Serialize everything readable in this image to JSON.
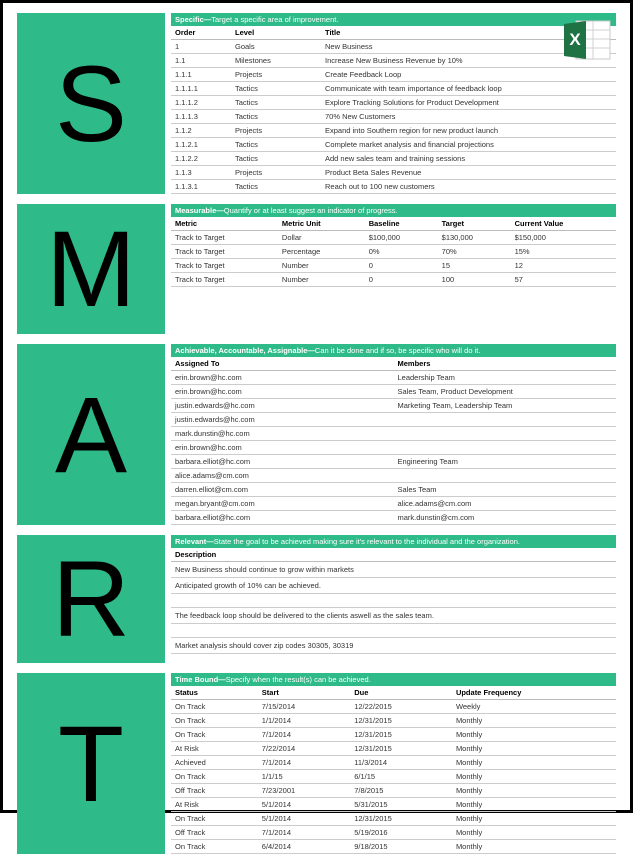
{
  "colors": {
    "accent": "#2fba8a",
    "border": "#000000",
    "rule": "#cccccc"
  },
  "excel_badge": {
    "name": "excel-icon"
  },
  "sections": {
    "s": {
      "letter": "S",
      "header_bold": "Specific—",
      "header_rest": "Target a specific area of improvement.",
      "cols": [
        "Order",
        "Level",
        "Title"
      ],
      "rows": [
        [
          "1",
          "Goals",
          "New Business"
        ],
        [
          "1.1",
          "Milestones",
          "Increase New Business Revenue by 10%"
        ],
        [
          "1.1.1",
          "Projects",
          "Create Feedback Loop"
        ],
        [
          "1.1.1.1",
          "Tactics",
          "Communicate with team importance of feedback loop"
        ],
        [
          "1.1.1.2",
          "Tactics",
          "Explore Tracking Solutions for Product Development"
        ],
        [
          "1.1.1.3",
          "Tactics",
          "70% New Customers"
        ],
        [
          "1.1.2",
          "Projects",
          "Expand into Southern region for new product launch"
        ],
        [
          "1.1.2.1",
          "Tactics",
          "Complete market analysis and financial projections"
        ],
        [
          "1.1.2.2",
          "Tactics",
          "Add new sales team and training sessions"
        ],
        [
          "1.1.3",
          "Projects",
          "Product Beta Sales Revenue"
        ],
        [
          "1.1.3.1",
          "Tactics",
          "Reach out to 100 new customers"
        ]
      ]
    },
    "m": {
      "letter": "M",
      "header_bold": "Measurable—",
      "header_rest": "Quantify or at least suggest an indicator of progress.",
      "cols": [
        "Metric",
        "Metric Unit",
        "Baseline",
        "Target",
        "Current Value"
      ],
      "rows": [
        [
          "Track to Target",
          "Dollar",
          "$100,000",
          "$130,000",
          "$150,000"
        ],
        [
          "Track to Target",
          "Percentage",
          "0%",
          "70%",
          "15%"
        ],
        [
          "Track to Target",
          "Number",
          "0",
          "15",
          "12"
        ],
        [
          "Track to Target",
          "Number",
          "0",
          "100",
          "57"
        ]
      ]
    },
    "a": {
      "letter": "A",
      "header_bold": "Achievable, Accountable, Assignable—",
      "header_rest": "Can it be done and if so, be specific who will do it.",
      "cols": [
        "Assigned To",
        "Members"
      ],
      "rows": [
        [
          "erin.brown@hc.com",
          "Leadership Team"
        ],
        [
          "erin.brown@hc.com",
          "Sales Team, Product Development"
        ],
        [
          "justin.edwards@hc.com",
          "Marketing Team, Leadership Team"
        ],
        [
          "justin.edwards@hc.com",
          ""
        ],
        [
          "mark.dunstin@hc.com",
          ""
        ],
        [
          "erin.brown@hc.com",
          ""
        ],
        [
          "barbara.elliot@hc.com",
          "Engineering Team"
        ],
        [
          "alice.adams@cm.com",
          ""
        ],
        [
          "darren.elliot@cm.com",
          "Sales Team"
        ],
        [
          "megan.bryant@cm.com",
          "alice.adams@cm.com"
        ],
        [
          "barbara.elliot@hc.com",
          "mark.dunstin@cm.com"
        ]
      ]
    },
    "r": {
      "letter": "R",
      "header_bold": "Relevant—",
      "header_rest": "State the goal to be achieved making sure it's relevant to the individual and the organization.",
      "cols": [
        "Description"
      ],
      "lines": [
        "New Business should continue to grow within markets",
        "Anticipated growth of 10% can be achieved.",
        "",
        "The feedback loop should be delivered to the clients aswell as the sales team.",
        "",
        "Market analysis should cover zip codes 30305, 30319"
      ]
    },
    "t": {
      "letter": "T",
      "header_bold": "Time Bound—",
      "header_rest": "Specify when the result(s) can be achieved.",
      "cols": [
        "Status",
        "Start",
        "Due",
        "Update Frequency"
      ],
      "rows": [
        [
          "On Track",
          "7/15/2014",
          "12/22/2015",
          "Weekly"
        ],
        [
          "On Track",
          "1/1/2014",
          "12/31/2015",
          "Monthly"
        ],
        [
          "On Track",
          "7/1/2014",
          "12/31/2015",
          "Monthly"
        ],
        [
          "At Risk",
          "7/22/2014",
          "12/31/2015",
          "Monthly"
        ],
        [
          "Achieved",
          "7/1/2014",
          "11/3/2014",
          "Monthly"
        ],
        [
          "On Track",
          "1/1/15",
          "6/1/15",
          "Monthly"
        ],
        [
          "Off Track",
          "7/23/2001",
          "7/8/2015",
          "Monthly"
        ],
        [
          "At Risk",
          "5/1/2014",
          "5/31/2015",
          "Monthly"
        ],
        [
          "On Track",
          "5/1/2014",
          "12/31/2015",
          "Monthly"
        ],
        [
          "Off Track",
          "7/1/2014",
          "5/19/2016",
          "Monthly"
        ],
        [
          "On Track",
          "6/4/2014",
          "9/18/2015",
          "Monthly"
        ]
      ]
    }
  }
}
